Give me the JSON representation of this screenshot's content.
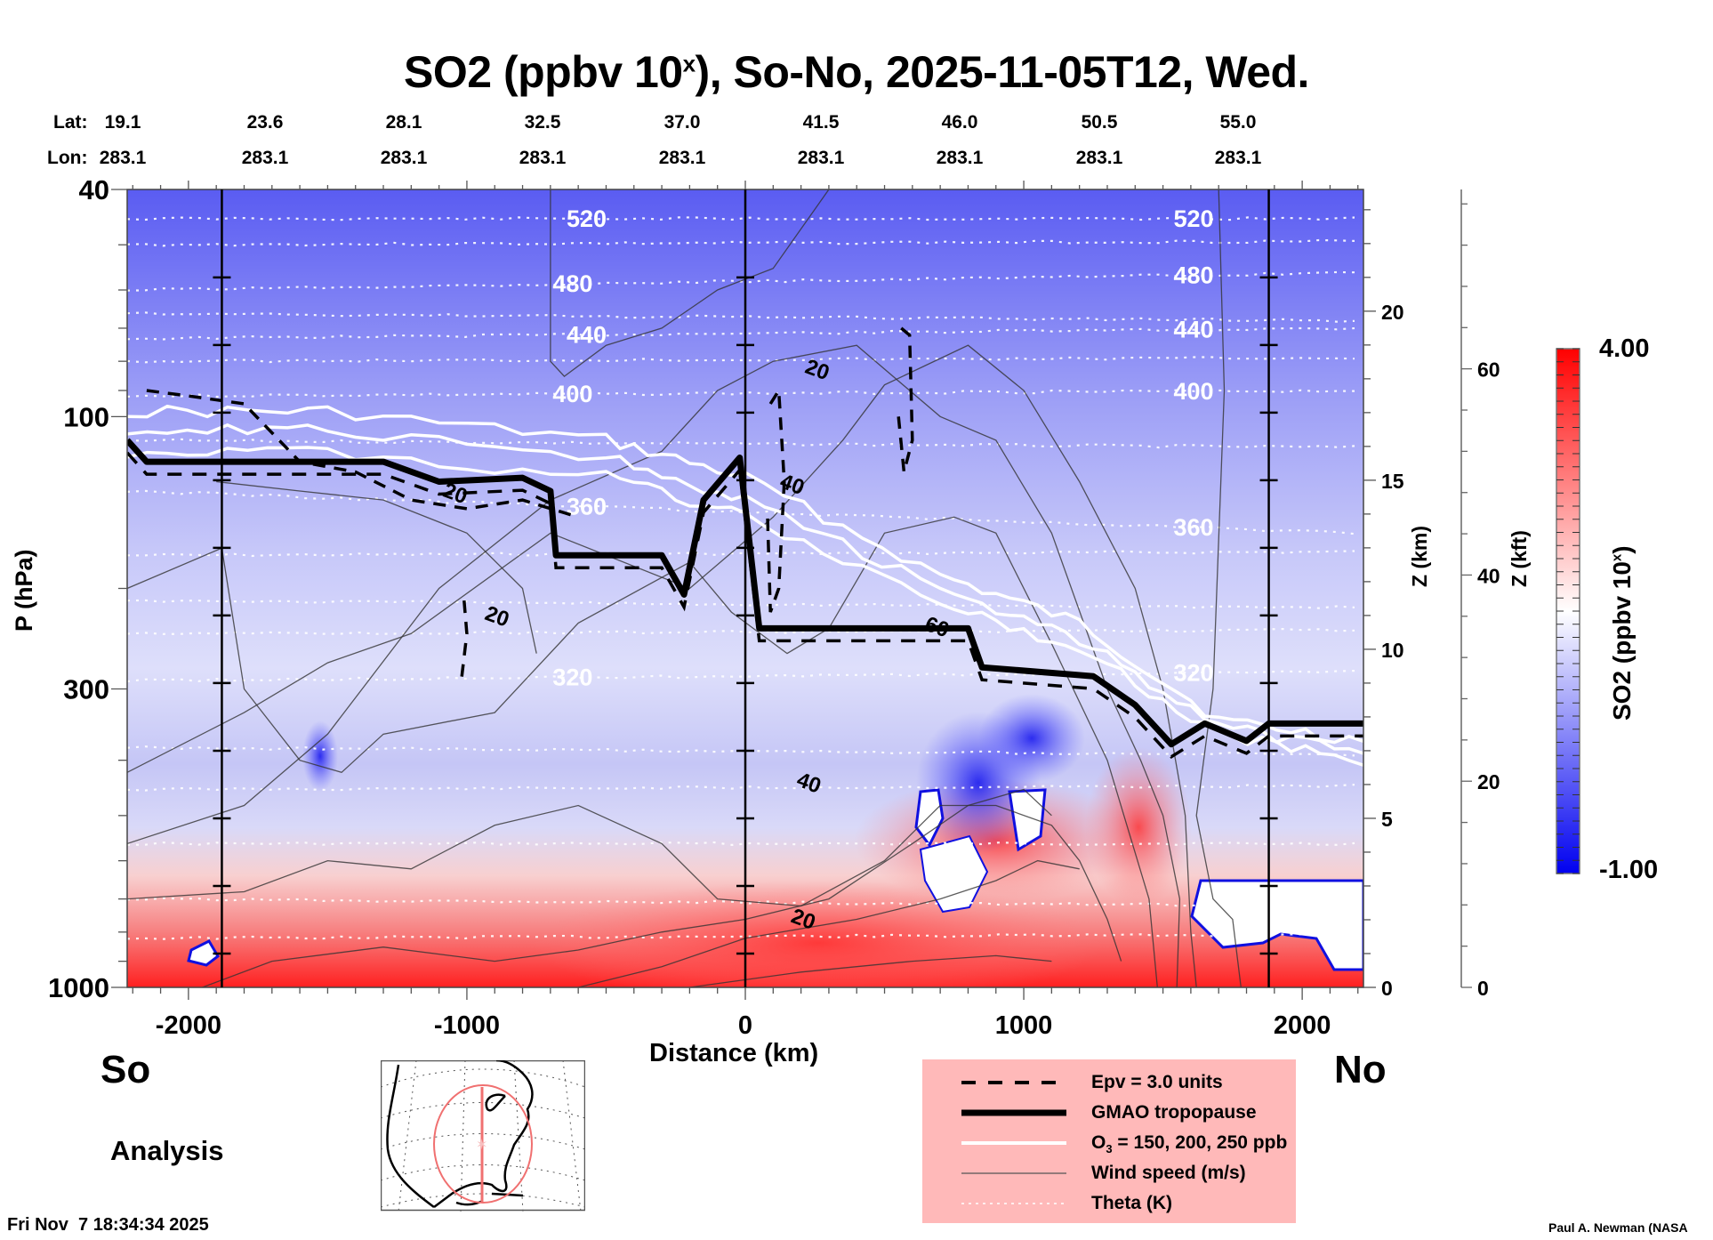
{
  "chart_data": {
    "type": "heatmap",
    "title": "SO2 (ppbv 10",
    "title_sup": "x",
    "title_rest": "), So-No, 2025-11-05T12, Wed.",
    "xlabel": "Distance (km)",
    "ylabel": "P (hPa)",
    "xlim": [
      -2220,
      2220
    ],
    "ylim_hpa": [
      1000,
      40
    ],
    "y_scale": "log",
    "xticks": [
      -2000,
      -1000,
      0,
      1000,
      2000
    ],
    "xtick_labels": [
      "-2000",
      "-1000",
      "0",
      "1000",
      "2000"
    ],
    "yticks": [
      40,
      100,
      300,
      1000
    ],
    "ytick_labels": [
      "40",
      "100",
      "300",
      "1000"
    ],
    "z_km_axis": {
      "label": "Z (km)",
      "ticks": [
        0,
        5,
        10,
        15,
        20
      ],
      "tick_labels": [
        "0",
        "5",
        "10",
        "15",
        "20"
      ]
    },
    "z_kft_axis": {
      "label": "Z (kft)",
      "ticks": [
        0,
        20,
        40,
        60
      ],
      "tick_labels": [
        "0",
        "20",
        "40",
        "60"
      ]
    },
    "lat_label": "Lat:",
    "lon_label": "Lon:",
    "latitudes": [
      "19.1",
      "23.6",
      "28.1",
      "32.5",
      "37.0",
      "41.5",
      "46.0",
      "50.5",
      "55.0"
    ],
    "longitudes": [
      "283.1",
      "283.1",
      "283.1",
      "283.1",
      "283.1",
      "283.1",
      "283.1",
      "283.1",
      "283.1"
    ],
    "latlon_distances_km": [
      -2220,
      -1665,
      -1110,
      -555,
      0,
      555,
      1110,
      1665,
      2220
    ],
    "vertical_markers_km": [
      -1880,
      0,
      1880
    ],
    "colorbar": {
      "label": "SO2 (ppbv 10",
      "label_sup": "x",
      "label_end": ")",
      "min": -1.0,
      "max": 4.0,
      "min_label": "-1.00",
      "max_label": "4.00",
      "low_color": "#0000ff",
      "mid_color": "#ffffff",
      "high_color": "#ff0000",
      "mid_value": 1.5
    },
    "theta_contours_K": [
      {
        "value": 520,
        "label": "520",
        "p_left": 45,
        "p_right": 45
      },
      {
        "value": 480,
        "label": "480",
        "p_left": 60,
        "p_right": 56
      },
      {
        "value": 440,
        "label": "440",
        "p_left": 73,
        "p_right": 70
      },
      {
        "value": 400,
        "label": "400",
        "p_left": 92,
        "p_right": 90
      },
      {
        "value": 360,
        "label": "360",
        "p_left": 135,
        "p_right": 160
      },
      {
        "value": 320,
        "label": "320",
        "p_left": 290,
        "p_right": 280
      },
      {
        "value": 300,
        "label": "",
        "p_left": 560,
        "p_right": 560
      }
    ],
    "tropopause_hpa": [
      {
        "x": -2220,
        "p": 110
      },
      {
        "x": -2150,
        "p": 120
      },
      {
        "x": -1300,
        "p": 120
      },
      {
        "x": -1100,
        "p": 130
      },
      {
        "x": -800,
        "p": 128
      },
      {
        "x": -700,
        "p": 135
      },
      {
        "x": -680,
        "p": 175
      },
      {
        "x": -300,
        "p": 175
      },
      {
        "x": -220,
        "p": 205
      },
      {
        "x": -150,
        "p": 140
      },
      {
        "x": -20,
        "p": 118
      },
      {
        "x": 50,
        "p": 235
      },
      {
        "x": 800,
        "p": 235
      },
      {
        "x": 850,
        "p": 275
      },
      {
        "x": 1250,
        "p": 285
      },
      {
        "x": 1400,
        "p": 320
      },
      {
        "x": 1530,
        "p": 375
      },
      {
        "x": 1650,
        "p": 345
      },
      {
        "x": 1800,
        "p": 370
      },
      {
        "x": 1880,
        "p": 345
      },
      {
        "x": 2220,
        "p": 345
      }
    ],
    "ozone_ppb_lines": [
      {
        "value": 150,
        "points": [
          {
            "x": -2220,
            "p": 98
          },
          {
            "x": -1500,
            "p": 98
          },
          {
            "x": -500,
            "p": 110
          },
          {
            "x": 0,
            "p": 128
          },
          {
            "x": 700,
            "p": 190
          },
          {
            "x": 1200,
            "p": 230
          },
          {
            "x": 1700,
            "p": 340
          },
          {
            "x": 2220,
            "p": 370
          }
        ]
      },
      {
        "value": 200,
        "points": [
          {
            "x": -2220,
            "p": 105
          },
          {
            "x": -1500,
            "p": 105
          },
          {
            "x": -500,
            "p": 118
          },
          {
            "x": 0,
            "p": 140
          },
          {
            "x": 700,
            "p": 200
          },
          {
            "x": 1200,
            "p": 245
          },
          {
            "x": 1700,
            "p": 350
          },
          {
            "x": 2220,
            "p": 385
          }
        ]
      },
      {
        "value": 250,
        "points": [
          {
            "x": -2220,
            "p": 115
          },
          {
            "x": -1500,
            "p": 115
          },
          {
            "x": -500,
            "p": 128
          },
          {
            "x": 0,
            "p": 150
          },
          {
            "x": 700,
            "p": 212
          },
          {
            "x": 1200,
            "p": 255
          },
          {
            "x": 1700,
            "p": 360
          },
          {
            "x": 2220,
            "p": 400
          }
        ]
      }
    ],
    "wind_speed_labels": [
      {
        "label": "20",
        "x": 250,
        "p": 85
      },
      {
        "label": "20",
        "x": -1050,
        "p": 140
      },
      {
        "label": "20",
        "x": -900,
        "p": 230
      },
      {
        "label": "40",
        "x": 160,
        "p": 135
      },
      {
        "label": "60",
        "x": 680,
        "p": 240
      },
      {
        "label": "40",
        "x": 220,
        "p": 450
      },
      {
        "label": "20",
        "x": 200,
        "p": 780
      }
    ]
  },
  "labels": {
    "south": "So",
    "north": "No",
    "analysis": "Analysis",
    "timestamp": "Fri Nov  7 18:34:34 2025",
    "credit": "Paul A. Newman (NASA"
  },
  "legend": {
    "items": [
      {
        "label": "Epv = 3.0 units",
        "style": "dashed-thick"
      },
      {
        "label": "GMAO tropopause",
        "style": "solid-thickest"
      },
      {
        "label": "O3 = 150, 200, 250 ppb",
        "label_main": "O",
        "label_sub": "3",
        "label_rest": " = 150, 200, 250 ppb",
        "style": "white-thick"
      },
      {
        "label": "Wind speed (m/s)",
        "style": "solid-thin"
      },
      {
        "label": "Theta (K)",
        "style": "dotted-white"
      }
    ],
    "background": "#ffb9b9"
  },
  "inset_map": {
    "region": "North America",
    "marker_color": "#f07070"
  }
}
